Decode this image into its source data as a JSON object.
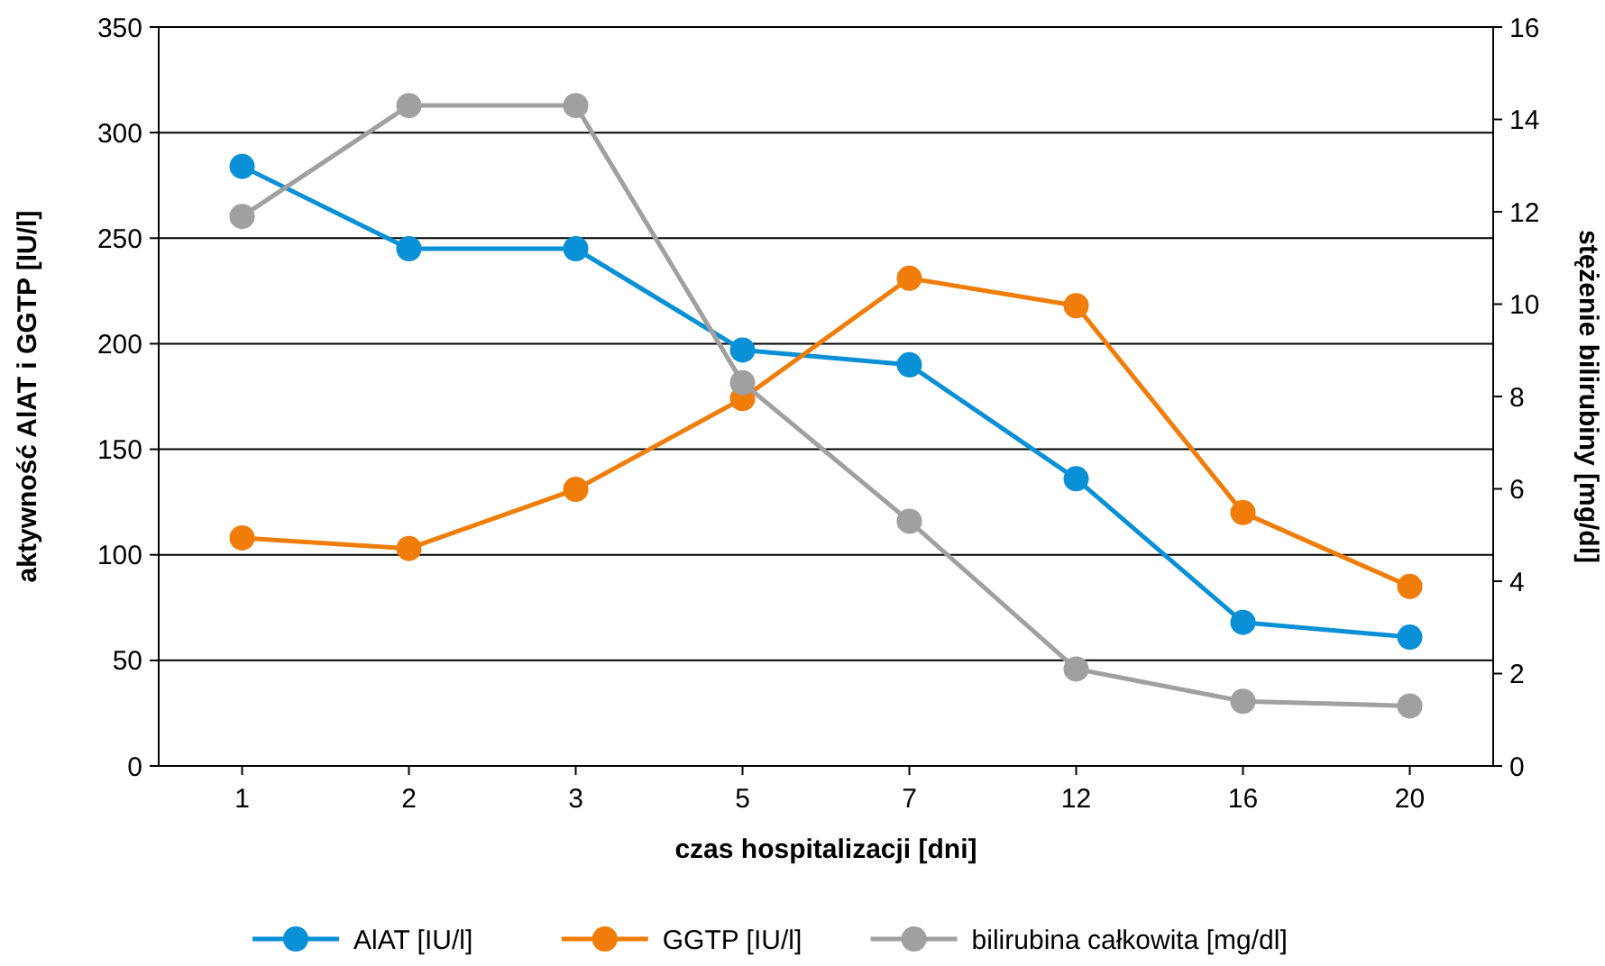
{
  "chart_data": {
    "type": "line",
    "xlabel": "czas hospitalizacji [dni]",
    "ylabel": "aktywność AlAT i GGTP [IU/l]",
    "y2label": "stężenie bilirubiny [mg/dl]",
    "categories": [
      "1",
      "2",
      "3",
      "5",
      "7",
      "12",
      "16",
      "20"
    ],
    "series": [
      {
        "name": "AlAT [IU/l]",
        "color": "#0a90d6",
        "values": [
          284,
          245,
          245,
          197,
          190,
          136,
          68,
          61
        ]
      },
      {
        "name": "GGTP [IU/l]",
        "color": "#f07d0a",
        "values": [
          108,
          103,
          131,
          174,
          231,
          218,
          120,
          85
        ]
      },
      {
        "name": "bilirubina całkowita [mg/dl]",
        "color": "#a0a0a0",
        "axis": "y2",
        "values": [
          11.9,
          14.3,
          14.3,
          8.3,
          5.3,
          2.1,
          1.4,
          1.3
        ]
      }
    ],
    "ylim": [
      0,
      350
    ],
    "yticks": [
      0,
      50,
      100,
      150,
      200,
      250,
      300,
      350
    ],
    "y2lim": [
      0,
      16
    ],
    "y2ticks": [
      0,
      2,
      4,
      6,
      8,
      10,
      12,
      14,
      16
    ],
    "grid": "y",
    "legend": "bottom",
    "marker": "circle",
    "line_style": "solid"
  }
}
